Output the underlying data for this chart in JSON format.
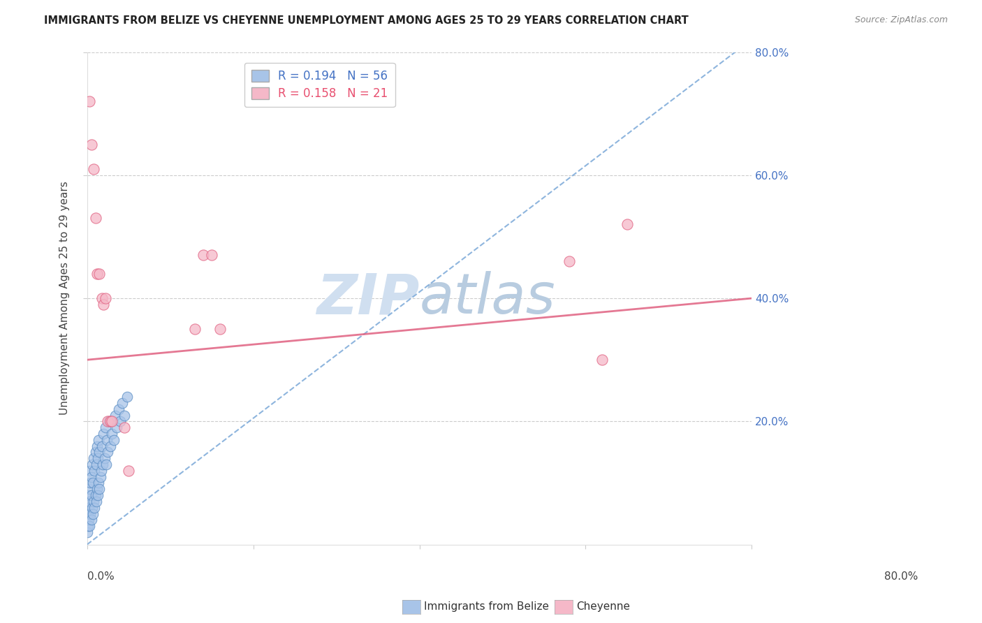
{
  "title": "IMMIGRANTS FROM BELIZE VS CHEYENNE UNEMPLOYMENT AMONG AGES 25 TO 29 YEARS CORRELATION CHART",
  "source_text": "Source: ZipAtlas.com",
  "ylabel": "Unemployment Among Ages 25 to 29 years",
  "xlim": [
    0.0,
    0.8
  ],
  "ylim": [
    0.0,
    0.8
  ],
  "xticks": [
    0.0,
    0.2,
    0.4,
    0.6,
    0.8
  ],
  "yticks": [
    0.2,
    0.4,
    0.6,
    0.8
  ],
  "right_yticklabels": [
    "20.0%",
    "40.0%",
    "60.0%",
    "80.0%"
  ],
  "x_edge_labels": [
    "0.0%",
    "80.0%"
  ],
  "belize_R": "0.194",
  "belize_N": "56",
  "cheyenne_R": "0.158",
  "cheyenne_N": "21",
  "belize_color": "#a8c4e8",
  "belize_edge_color": "#5b8ec4",
  "cheyenne_color": "#f5b8c8",
  "cheyenne_edge_color": "#e06080",
  "belize_trend_color": "#7aa8d8",
  "cheyenne_trend_color": "#e06080",
  "legend_r_color_belize": "#4472c4",
  "legend_r_color_cheyenne": "#e85070",
  "watermark_color": "#d0dff0",
  "legend_label_belize": "Immigrants from Belize",
  "legend_label_cheyenne": "Cheyenne",
  "belize_scatter_x": [
    0.0,
    0.001,
    0.001,
    0.002,
    0.002,
    0.002,
    0.003,
    0.003,
    0.003,
    0.004,
    0.004,
    0.004,
    0.005,
    0.005,
    0.005,
    0.006,
    0.006,
    0.007,
    0.007,
    0.008,
    0.008,
    0.009,
    0.009,
    0.01,
    0.01,
    0.011,
    0.011,
    0.012,
    0.012,
    0.013,
    0.013,
    0.014,
    0.014,
    0.015,
    0.015,
    0.016,
    0.017,
    0.018,
    0.019,
    0.02,
    0.021,
    0.022,
    0.023,
    0.024,
    0.025,
    0.026,
    0.028,
    0.03,
    0.032,
    0.034,
    0.036,
    0.038,
    0.04,
    0.042,
    0.045,
    0.048
  ],
  "belize_scatter_y": [
    0.02,
    0.03,
    0.05,
    0.04,
    0.06,
    0.08,
    0.03,
    0.07,
    0.09,
    0.05,
    0.1,
    0.12,
    0.04,
    0.08,
    0.11,
    0.06,
    0.13,
    0.05,
    0.1,
    0.07,
    0.14,
    0.06,
    0.12,
    0.08,
    0.15,
    0.07,
    0.13,
    0.09,
    0.16,
    0.08,
    0.14,
    0.1,
    0.17,
    0.09,
    0.15,
    0.11,
    0.12,
    0.16,
    0.13,
    0.18,
    0.14,
    0.19,
    0.13,
    0.17,
    0.15,
    0.2,
    0.16,
    0.18,
    0.17,
    0.21,
    0.19,
    0.22,
    0.2,
    0.23,
    0.21,
    0.24
  ],
  "cheyenne_scatter_x": [
    0.003,
    0.005,
    0.008,
    0.01,
    0.012,
    0.015,
    0.018,
    0.02,
    0.022,
    0.025,
    0.028,
    0.03,
    0.045,
    0.05,
    0.13,
    0.14,
    0.15,
    0.16,
    0.58,
    0.62,
    0.65
  ],
  "cheyenne_scatter_y": [
    0.72,
    0.65,
    0.61,
    0.53,
    0.44,
    0.44,
    0.4,
    0.39,
    0.4,
    0.2,
    0.2,
    0.2,
    0.19,
    0.12,
    0.35,
    0.47,
    0.47,
    0.35,
    0.46,
    0.3,
    0.52
  ],
  "belize_trend_x": [
    0.0,
    0.78
  ],
  "belize_trend_y": [
    0.0,
    0.8
  ],
  "cheyenne_trend_x": [
    0.0,
    0.8
  ],
  "cheyenne_trend_y": [
    0.3,
    0.4
  ]
}
